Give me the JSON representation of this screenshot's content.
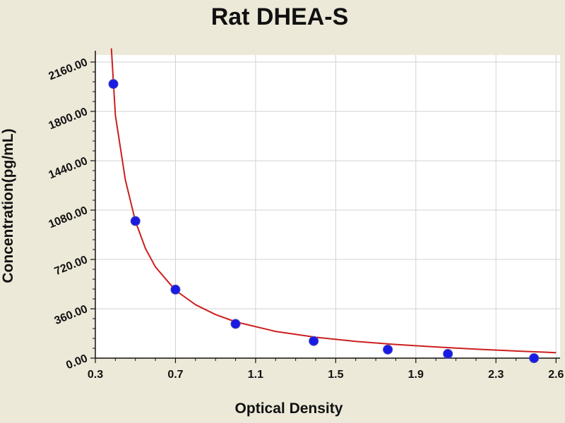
{
  "chart_data": {
    "type": "scatter",
    "title": "Rat DHEA-S",
    "xlabel": "Optical Density",
    "ylabel": "Concentration(pg/mL)",
    "xlim": [
      0.3,
      2.62
    ],
    "ylim": [
      0,
      2160
    ],
    "x_ticks": [
      "0.3",
      "0.7",
      "1.1",
      "1.5",
      "1.9",
      "2.3",
      "2.6"
    ],
    "x_tick_values": [
      0.3,
      0.7,
      1.1,
      1.5,
      1.9,
      2.3,
      2.6
    ],
    "y_ticks": [
      "0.00",
      "360.00",
      "720.00",
      "1080.00",
      "1440.00",
      "1800.00",
      "2160.00"
    ],
    "y_tick_values": [
      0,
      360,
      720,
      1080,
      1440,
      1800,
      2160
    ],
    "grid": true,
    "series": [
      {
        "kind": "points",
        "color": "#1a1ae6",
        "x": [
          0.39,
          0.5,
          0.7,
          1.0,
          1.39,
          1.76,
          2.06,
          2.49
        ],
        "y": [
          2000,
          1000,
          500,
          250,
          125,
          62.5,
          31.2,
          0
        ]
      },
      {
        "kind": "fitted-curve",
        "color": "#cc1f1f",
        "x": [
          0.38,
          0.4,
          0.45,
          0.5,
          0.55,
          0.6,
          0.7,
          0.8,
          0.9,
          1.0,
          1.2,
          1.4,
          1.6,
          1.8,
          2.0,
          2.2,
          2.4,
          2.6
        ],
        "y": [
          2260,
          1770,
          1300,
          1000,
          800,
          665,
          495,
          390,
          318,
          265,
          195,
          152,
          122,
          100,
          82,
          66,
          52,
          40
        ]
      }
    ]
  }
}
